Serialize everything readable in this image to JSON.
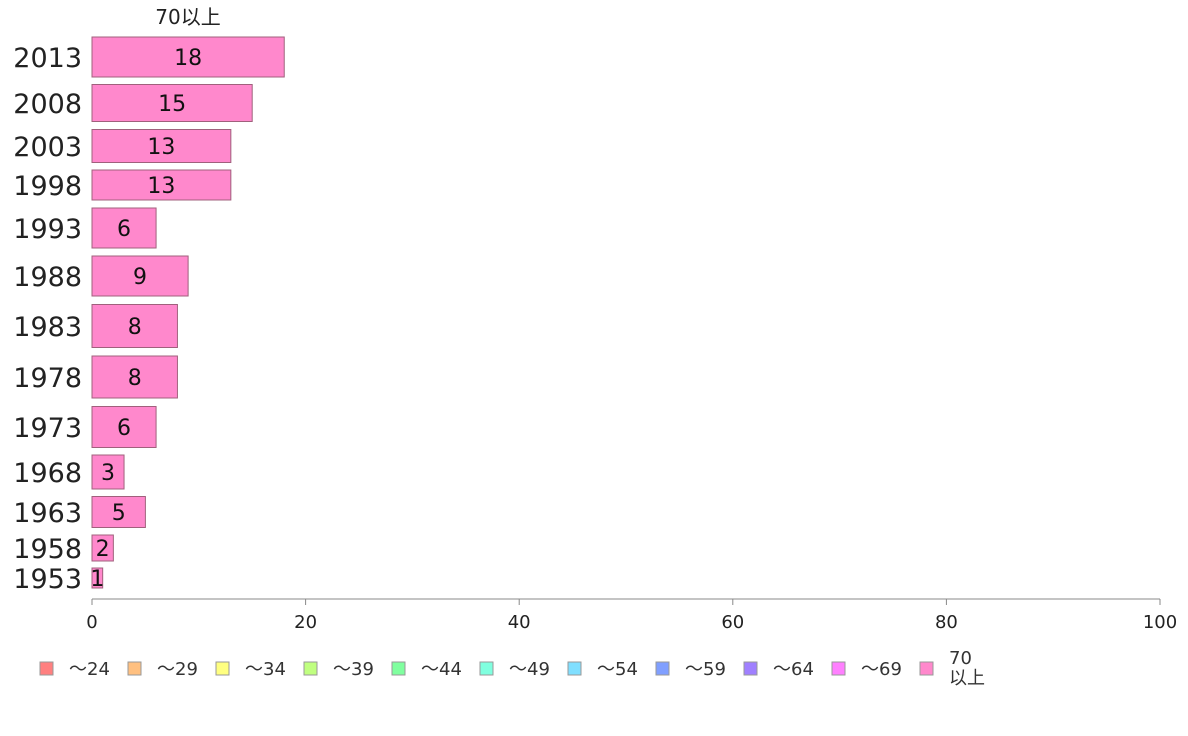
{
  "chart_data": {
    "type": "bar",
    "orientation": "horizontal",
    "stacked": true,
    "title": "70以上",
    "xlim": [
      0,
      100
    ],
    "xticks": [
      0,
      20,
      40,
      60,
      80,
      100
    ],
    "categories": [
      "2013",
      "2008",
      "2003",
      "1998",
      "1993",
      "1988",
      "1983",
      "1978",
      "1973",
      "1968",
      "1963",
      "1958",
      "1953"
    ],
    "series": [
      {
        "name": "～24",
        "color": "#ff8080",
        "values": [
          0,
          0,
          0,
          0,
          0,
          0,
          0,
          0,
          0,
          0,
          0,
          0,
          0
        ]
      },
      {
        "name": "～29",
        "color": "#ffc080",
        "values": [
          0,
          0,
          0,
          0,
          0,
          0,
          0,
          0,
          0,
          0,
          0,
          0,
          0
        ]
      },
      {
        "name": "～34",
        "color": "#ffff80",
        "values": [
          0,
          0,
          0,
          0,
          0,
          0,
          0,
          0,
          0,
          0,
          0,
          0,
          0
        ]
      },
      {
        "name": "～39",
        "color": "#c0ff80",
        "values": [
          0,
          0,
          0,
          0,
          0,
          0,
          0,
          0,
          0,
          0,
          0,
          0,
          0
        ]
      },
      {
        "name": "～44",
        "color": "#80ff9f",
        "values": [
          0,
          0,
          0,
          0,
          0,
          0,
          0,
          0,
          0,
          0,
          0,
          0,
          0
        ]
      },
      {
        "name": "～49",
        "color": "#80ffdf",
        "values": [
          0,
          0,
          0,
          0,
          0,
          0,
          0,
          0,
          0,
          0,
          0,
          0,
          0
        ]
      },
      {
        "name": "～54",
        "color": "#80dfff",
        "values": [
          0,
          0,
          0,
          0,
          0,
          0,
          0,
          0,
          0,
          0,
          0,
          0,
          0
        ]
      },
      {
        "name": "～59",
        "color": "#809fff",
        "values": [
          0,
          0,
          0,
          0,
          0,
          0,
          0,
          0,
          0,
          0,
          0,
          0,
          0
        ]
      },
      {
        "name": "～64",
        "color": "#a080ff",
        "values": [
          0,
          0,
          0,
          0,
          0,
          0,
          0,
          0,
          0,
          0,
          0,
          0,
          0
        ]
      },
      {
        "name": "～69",
        "color": "#ff80ff",
        "values": [
          0,
          0,
          0,
          0,
          0,
          0,
          0,
          0,
          0,
          0,
          0,
          0,
          0
        ]
      },
      {
        "name": "70\n以上",
        "color": "#ff88cc",
        "values": [
          18,
          15,
          13,
          13,
          6,
          9,
          8,
          8,
          6,
          3,
          5,
          2,
          1
        ]
      }
    ],
    "legend": "bottom",
    "grid": false
  }
}
